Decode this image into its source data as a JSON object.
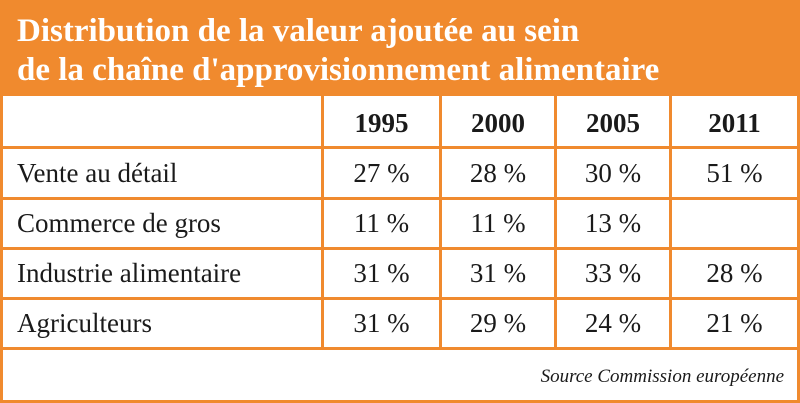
{
  "title": {
    "line1": "Distribution de la valeur ajoutée au sein",
    "line2": "de la chaîne d'approvisionnement alimentaire"
  },
  "table": {
    "columns": [
      "1995",
      "2000",
      "2005",
      "2011"
    ],
    "rows": [
      {
        "label": "Vente au détail",
        "values": [
          "27 %",
          "28 %",
          "30 %",
          "51 %"
        ]
      },
      {
        "label": "Commerce de gros",
        "values": [
          "11 %",
          "11 %",
          "13 %",
          ""
        ]
      },
      {
        "label": "Industrie alimentaire",
        "values": [
          "31 %",
          "31 %",
          "33 %",
          "28 %"
        ]
      },
      {
        "label": "Agriculteurs",
        "values": [
          "31 %",
          "29 %",
          "24 %",
          "21 %"
        ]
      }
    ]
  },
  "source": "Source Commission européenne",
  "colors": {
    "accent": "#f08a2e",
    "title_text": "#ffffff",
    "body_text": "#1a1a1a"
  }
}
